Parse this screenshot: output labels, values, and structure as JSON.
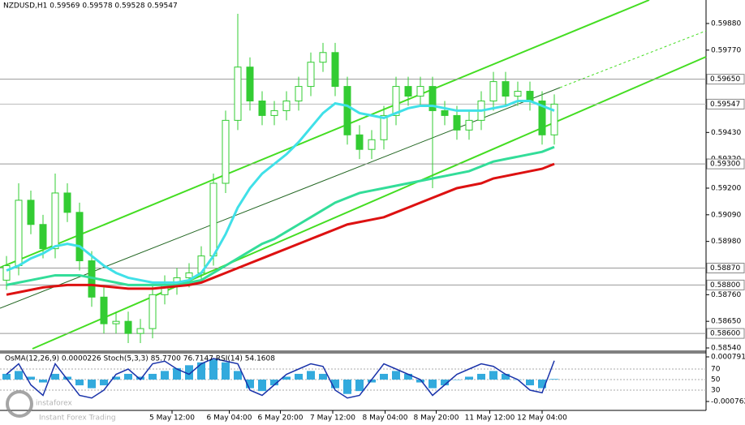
{
  "chart_data": {
    "type": "candlestick",
    "title": "NZDUSD,H1  0.59569 0.59578 0.59528 0.59547",
    "open": [
      0.5882,
      0.5888,
      0.5915,
      0.5905,
      0.5895,
      0.5918,
      0.591,
      0.589,
      0.5875,
      0.5864,
      0.5865,
      0.586,
      0.5862,
      0.5876,
      0.588,
      0.5883,
      0.5885,
      0.5892,
      0.5922,
      0.5948,
      0.597,
      0.5956,
      0.595,
      0.5952,
      0.5956,
      0.5962,
      0.5972,
      0.5976,
      0.5962,
      0.5942,
      0.5936,
      0.594,
      0.595,
      0.5962,
      0.5958,
      0.5962,
      0.5952,
      0.595,
      0.5944,
      0.5948,
      0.5956,
      0.5964,
      0.5958,
      0.596,
      0.5956,
      0.5942
    ],
    "high": [
      0.5892,
      0.5922,
      0.5919,
      0.5909,
      0.5926,
      0.5922,
      0.5914,
      0.5894,
      0.5879,
      0.5869,
      0.5869,
      0.5866,
      0.588,
      0.5884,
      0.5887,
      0.5889,
      0.5896,
      0.5926,
      0.5952,
      0.5992,
      0.5974,
      0.596,
      0.5956,
      0.596,
      0.5966,
      0.5976,
      0.598,
      0.598,
      0.5966,
      0.5946,
      0.5944,
      0.5954,
      0.5966,
      0.5966,
      0.5966,
      0.5966,
      0.5956,
      0.5954,
      0.5952,
      0.596,
      0.5968,
      0.5968,
      0.5964,
      0.5964,
      0.596,
      0.59587
    ],
    "low": [
      0.5878,
      0.5884,
      0.5901,
      0.5891,
      0.5891,
      0.5906,
      0.5886,
      0.5871,
      0.586,
      0.586,
      0.5856,
      0.5856,
      0.5858,
      0.5872,
      0.5876,
      0.5879,
      0.5881,
      0.5888,
      0.5918,
      0.5944,
      0.5952,
      0.5946,
      0.5946,
      0.5948,
      0.5952,
      0.5958,
      0.5968,
      0.5958,
      0.5938,
      0.5932,
      0.5932,
      0.5936,
      0.5946,
      0.5954,
      0.5954,
      0.592,
      0.5946,
      0.594,
      0.594,
      0.5944,
      0.5952,
      0.5954,
      0.5954,
      0.5952,
      0.5938,
      0.5938
    ],
    "close": [
      0.5888,
      0.5915,
      0.5905,
      0.5895,
      0.5918,
      0.591,
      0.589,
      0.5875,
      0.5864,
      0.5865,
      0.586,
      0.5862,
      0.5876,
      0.588,
      0.5883,
      0.5885,
      0.5892,
      0.5922,
      0.5948,
      0.597,
      0.5956,
      0.595,
      0.5952,
      0.5956,
      0.5962,
      0.5972,
      0.5976,
      0.5962,
      0.5942,
      0.5936,
      0.594,
      0.595,
      0.5962,
      0.5958,
      0.5962,
      0.5952,
      0.595,
      0.5944,
      0.5948,
      0.5956,
      0.5964,
      0.5958,
      0.596,
      0.5956,
      0.5942,
      0.59547
    ],
    "color": "#33cc33",
    "series": [
      {
        "color": "#40e0e8",
        "values": [
          0.5886,
          0.5888,
          0.5891,
          0.5893,
          0.5896,
          0.5897,
          0.5896,
          0.5892,
          0.5888,
          0.5885,
          0.5883,
          0.5882,
          0.5881,
          0.5881,
          0.5881,
          0.5882,
          0.5885,
          0.5892,
          0.5901,
          0.5912,
          0.592,
          0.5926,
          0.593,
          0.5934,
          0.5939,
          0.5945,
          0.5951,
          0.5955,
          0.5954,
          0.5951,
          0.595,
          0.5949,
          0.5951,
          0.5953,
          0.5954,
          0.5954,
          0.5953,
          0.5952,
          0.5952,
          0.5952,
          0.5953,
          0.5954,
          0.5956,
          0.5956,
          0.5954,
          0.5952
        ]
      },
      {
        "color": "#33dd99",
        "values": [
          0.588,
          0.5881,
          0.5882,
          0.5883,
          0.5884,
          0.5884,
          0.5884,
          0.5883,
          0.5882,
          0.5881,
          0.588,
          0.588,
          0.588,
          0.588,
          0.588,
          0.5881,
          0.5882,
          0.5885,
          0.5888,
          0.5891,
          0.5894,
          0.5897,
          0.5899,
          0.5902,
          0.5905,
          0.5908,
          0.5911,
          0.5914,
          0.5916,
          0.5918,
          0.5919,
          0.592,
          0.5921,
          0.5922,
          0.5923,
          0.5924,
          0.5925,
          0.5926,
          0.5927,
          0.5929,
          0.5931,
          0.5932,
          0.5933,
          0.5934,
          0.5935,
          0.5937
        ]
      },
      {
        "color": "#dd1111",
        "values": [
          0.5876,
          0.5877,
          0.5878,
          0.5879,
          0.58795,
          0.588,
          0.588,
          0.588,
          0.58795,
          0.5879,
          0.58785,
          0.58785,
          0.58785,
          0.5879,
          0.58795,
          0.588,
          0.5881,
          0.5883,
          0.5885,
          0.5887,
          0.5889,
          0.5891,
          0.5893,
          0.5895,
          0.5897,
          0.5899,
          0.5901,
          0.5903,
          0.5905,
          0.5906,
          0.5907,
          0.5908,
          0.591,
          0.5912,
          0.5914,
          0.5916,
          0.5918,
          0.592,
          0.5921,
          0.5922,
          0.5924,
          0.5925,
          0.5926,
          0.5927,
          0.5928,
          0.593
        ]
      }
    ],
    "ylim": [
      0.5853,
      0.59977
    ],
    "yticks": [
      {
        "value": 0.5988,
        "label": "0.59880"
      },
      {
        "value": 0.5977,
        "label": "0.59770"
      },
      {
        "value": 0.5943,
        "label": "0.59430"
      },
      {
        "value": 0.5932,
        "label": "0.59320"
      },
      {
        "value": 0.592,
        "label": "0.59200"
      },
      {
        "value": 0.5909,
        "label": "0.59090"
      },
      {
        "value": 0.5898,
        "label": "0.58980"
      },
      {
        "value": 0.5876,
        "label": "0.58760"
      },
      {
        "value": 0.5865,
        "label": "0.58650"
      },
      {
        "value": 0.5854,
        "label": "0.58540"
      }
    ],
    "levels": [
      {
        "value": 0.5965,
        "label": "0.59650"
      },
      {
        "value": 0.593,
        "label": "0.59300"
      },
      {
        "value": 0.5887,
        "label": "0.58870"
      },
      {
        "value": 0.588,
        "label": "0.58800"
      },
      {
        "value": 0.586,
        "label": "0.58600"
      }
    ],
    "current": {
      "value": 0.59547,
      "label": "0.59547"
    },
    "xticks": [
      {
        "value": 13.6,
        "label": "5 May 12:00"
      },
      {
        "value": 18.3,
        "label": "6 May 04:00"
      },
      {
        "value": 22.5,
        "label": "6 May 20:00"
      },
      {
        "value": 26.8,
        "label": "7 May 12:00"
      },
      {
        "value": 31.1,
        "label": "8 May 04:00"
      },
      {
        "value": 35.3,
        "label": "8 May 20:00"
      },
      {
        "value": 39.7,
        "label": "11 May 12:00"
      },
      {
        "value": 44,
        "label": "12 May 04:00"
      }
    ],
    "indicator": {
      "title": "OsMA(12,26,9) 0.0000226  Stoch(5,3,3) 85.7700 76.7147  RSI(14) 54.1608",
      "osma": [
        0.0002,
        0.0003,
        0.0001,
        -0.0001,
        0.0002,
        0.0001,
        -0.0002,
        -0.0003,
        -0.0002,
        0.0001,
        0.0002,
        0.0001,
        0.0002,
        0.0003,
        0.0004,
        0.0005,
        0.0006,
        0.0007,
        0.0006,
        0.0003,
        -0.0003,
        -0.0004,
        -0.0002,
        0.0001,
        0.0002,
        0.0003,
        0.0002,
        -0.0003,
        -0.0005,
        -0.0004,
        -0.0001,
        0.0002,
        0.0003,
        0.0002,
        -0.0001,
        -0.0003,
        -0.0002,
        0,
        0.0001,
        0.0002,
        0.0003,
        0.0002,
        0,
        -0.0002,
        -0.0003,
        2.26e-05
      ],
      "osma_color": "#33aadd",
      "osma_lim": [
        -0.0007624,
        0.0007914
      ],
      "osma_ticks": [
        0.0007914,
        -0.0007624
      ],
      "stoch": [
        60,
        80,
        40,
        20,
        80,
        50,
        20,
        15,
        30,
        60,
        70,
        50,
        80,
        85,
        70,
        60,
        80,
        90,
        85,
        80,
        30,
        20,
        40,
        60,
        70,
        80,
        75,
        30,
        15,
        20,
        50,
        80,
        70,
        60,
        50,
        20,
        40,
        60,
        70,
        80,
        75,
        60,
        50,
        30,
        25,
        85.77
      ],
      "stoch_color": "#1a33aa",
      "stoch_lim": [
        0,
        100
      ],
      "stoch_ticks": [
        70,
        50,
        30
      ]
    },
    "watermark": {
      "brand": "instaforex",
      "tagline": "Instant Forex Trading"
    }
  }
}
